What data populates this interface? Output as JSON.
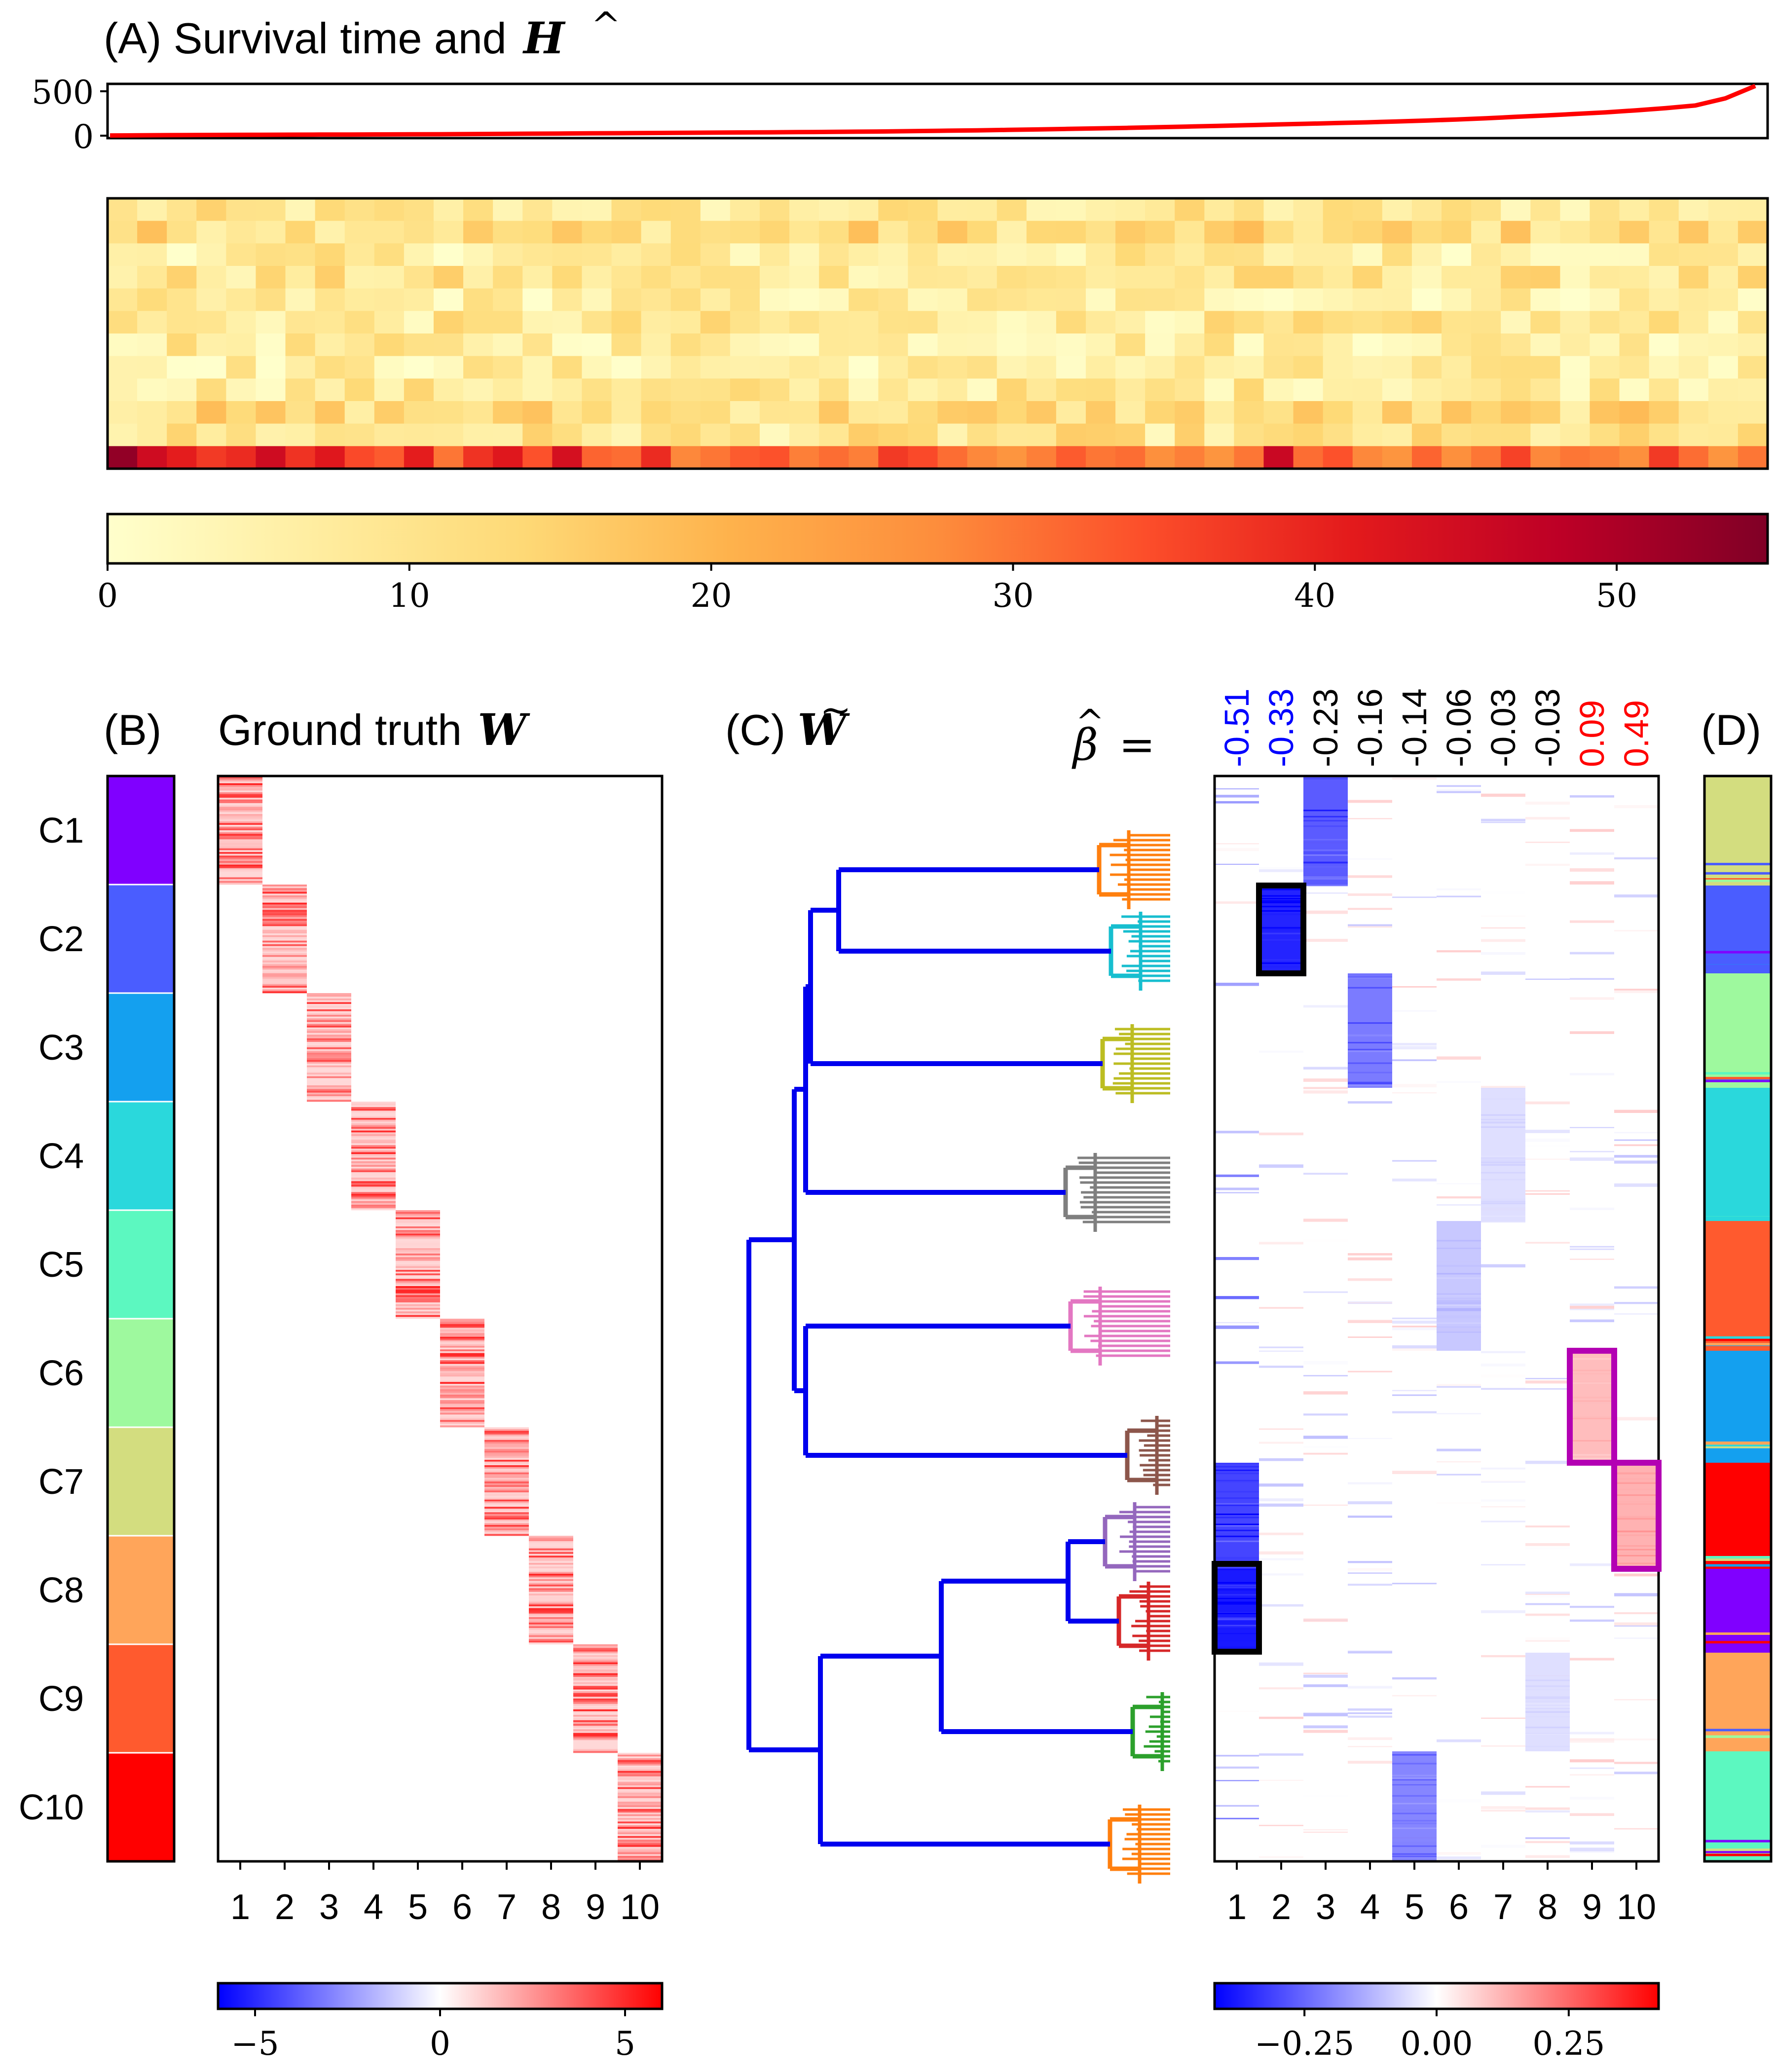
{
  "chart_data": [
    {
      "id": "A",
      "type": "line",
      "title": "(A) Survival time and ",
      "title_symbol": "H",
      "title_symbol_accent": "^",
      "ylim": [
        0,
        600
      ],
      "ytick_labels": [
        "500",
        "0"
      ],
      "ytick_values": [
        500,
        0
      ],
      "x_count": 56,
      "series": [
        {
          "name": "survival time",
          "color": "#ff0000",
          "values": [
            2,
            4,
            6,
            8,
            9,
            10,
            11,
            12,
            13,
            14,
            15,
            16,
            18,
            20,
            22,
            24,
            26,
            28,
            30,
            32,
            34,
            36,
            38,
            40,
            42,
            45,
            48,
            52,
            56,
            60,
            65,
            70,
            76,
            82,
            88,
            95,
            102,
            110,
            118,
            126,
            134,
            142,
            150,
            160,
            170,
            182,
            196,
            212,
            228,
            245,
            262,
            285,
            310,
            340,
            420,
            560
          ]
        }
      ]
    },
    {
      "id": "A-heatmap",
      "type": "heatmap",
      "rows": 12,
      "cols": 56,
      "colormap": "YlOrRd",
      "colorbar_ticks": [
        "0",
        "10",
        "20",
        "30",
        "40",
        "50"
      ],
      "colorbar_values": [
        0,
        10,
        20,
        30,
        40,
        50
      ],
      "colorbar_range": [
        0,
        55
      ],
      "bottom_row_values": [
        53,
        45,
        41,
        37,
        39,
        45,
        38,
        42,
        35,
        33,
        41,
        30,
        38,
        42,
        34,
        44,
        32,
        31,
        39,
        28,
        30,
        33,
        34,
        29,
        31,
        29,
        37,
        35,
        31,
        28,
        26,
        29,
        33,
        30,
        31,
        27,
        29,
        26,
        30,
        46,
        31,
        34,
        28,
        26,
        32,
        27,
        30,
        36,
        28,
        30,
        29,
        27,
        37,
        31,
        26,
        30
      ]
    },
    {
      "id": "B",
      "type": "heatmap",
      "panel_label": "(B)",
      "title": "Ground truth ",
      "title_symbol": "W",
      "clusters": [
        "C1",
        "C2",
        "C3",
        "C4",
        "C5",
        "C6",
        "C7",
        "C8",
        "C9",
        "C10"
      ],
      "cluster_colors": [
        "#8000ff",
        "#4a5dff",
        "#14a0ef",
        "#2ad8dc",
        "#5cf8c0",
        "#9ef99e",
        "#d3dd7f",
        "#ffa55a",
        "#ff5a2e",
        "#ff0000"
      ],
      "x_ticks": [
        "1",
        "2",
        "3",
        "4",
        "5",
        "6",
        "7",
        "8",
        "9",
        "10"
      ],
      "colorbar_ticks": [
        "−5",
        "0",
        "5"
      ],
      "colorbar_values": [
        -5,
        0,
        5
      ],
      "colorbar_range": [
        -6,
        6
      ]
    },
    {
      "id": "C",
      "type": "heatmap",
      "panel_label": "(C) ",
      "title_symbol": "W",
      "title_symbol_accent": "~",
      "beta_label": "=",
      "beta_symbol": "β",
      "beta_accent": "^",
      "beta_values": [
        "-0.51",
        "-0.33",
        "-0.23",
        "-0.16",
        "-0.14",
        "-0.06",
        "-0.03",
        "-0.03",
        "0.09",
        "0.49"
      ],
      "beta_colors": [
        "#0000ff",
        "#0000ff",
        "#000000",
        "#000000",
        "#000000",
        "#000000",
        "#000000",
        "#000000",
        "#ff0000",
        "#ff0000"
      ],
      "x_ticks": [
        "1",
        "2",
        "3",
        "4",
        "5",
        "6",
        "7",
        "8",
        "9",
        "10"
      ],
      "colorbar_ticks": [
        "−0.25",
        "0.00",
        "0.25"
      ],
      "colorbar_values": [
        -0.25,
        0,
        0.25
      ],
      "colorbar_range": [
        -0.42,
        0.42
      ],
      "dendrogram_leaf_colors": [
        "#ff7f0e",
        "#17becf",
        "#bcbd22",
        "#7f7f7f",
        "#e377c2",
        "#8c564b",
        "#9467bd",
        "#d62728",
        "#2ca02c",
        "#ff7f0e"
      ],
      "dendrogram_link_color": "#0000ee"
    },
    {
      "id": "D",
      "type": "heatmap",
      "panel_label": "(D)",
      "cluster_order": [
        "C7",
        "C2",
        "C6",
        "C4",
        "C9",
        "C3",
        "C10",
        "C1",
        "C8",
        "C5"
      ]
    }
  ]
}
